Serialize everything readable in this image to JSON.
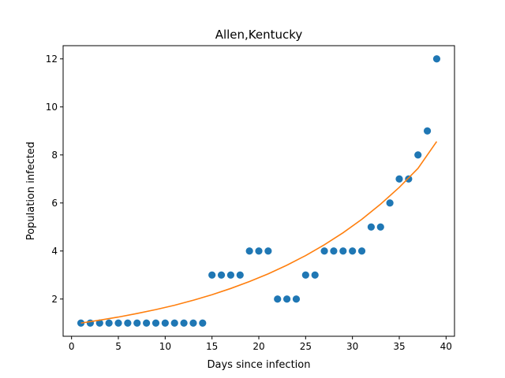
{
  "chart_data": {
    "type": "scatter",
    "title": "Allen,Kentucky",
    "xlabel": "Days since infection",
    "ylabel": "Population infected",
    "xlim": [
      -0.9,
      40.9
    ],
    "ylim": [
      0.45,
      12.55
    ],
    "xticks": [
      0,
      5,
      10,
      15,
      20,
      25,
      30,
      35,
      40
    ],
    "yticks": [
      2,
      4,
      6,
      8,
      10,
      12
    ],
    "grid": false,
    "series": [
      {
        "type": "scatter",
        "color": "#1f77b4",
        "x": [
          1,
          2,
          3,
          4,
          5,
          6,
          7,
          8,
          9,
          10,
          11,
          12,
          13,
          14,
          15,
          16,
          17,
          18,
          19,
          20,
          21,
          22,
          23,
          24,
          25,
          26,
          27,
          28,
          29,
          30,
          31,
          32,
          33,
          34,
          35,
          36,
          37,
          38,
          39
        ],
        "y": [
          1,
          1,
          1,
          1,
          1,
          1,
          1,
          1,
          1,
          1,
          1,
          1,
          1,
          1,
          3,
          3,
          3,
          3,
          4,
          4,
          4,
          2,
          2,
          2,
          3,
          3,
          4,
          4,
          4,
          4,
          4,
          5,
          5,
          6,
          7,
          7,
          8,
          9,
          12
        ]
      },
      {
        "type": "line",
        "color": "#ff7f0e",
        "x": [
          1,
          3,
          5,
          7,
          9,
          11,
          13,
          15,
          17,
          19,
          21,
          23,
          25,
          27,
          29,
          31,
          33,
          35,
          37,
          39
        ],
        "y": [
          1.0,
          1.12,
          1.25,
          1.4,
          1.56,
          1.74,
          1.95,
          2.18,
          2.44,
          2.73,
          3.05,
          3.41,
          3.81,
          4.26,
          4.76,
          5.32,
          5.95,
          6.65,
          7.44,
          8.56
        ]
      }
    ]
  }
}
